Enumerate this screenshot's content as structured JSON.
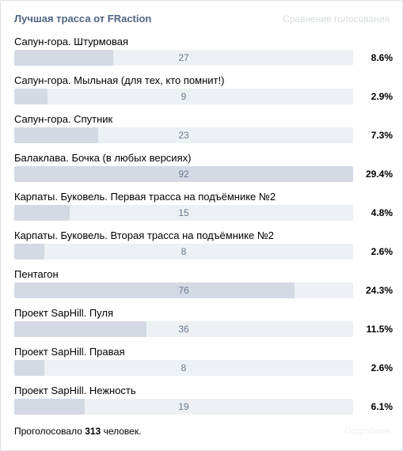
{
  "poll": {
    "title": "Лучшая трасса от FRaction",
    "subtitle": "Сравнение голосования",
    "options": [
      {
        "label": "Сапун-гора. Штурмовая",
        "votes": "27",
        "percent": "8.6%",
        "share": 0.086
      },
      {
        "label": "Сапун-гора. Мыльная (для тех, кто помнит!)",
        "votes": "9",
        "percent": "2.9%",
        "share": 0.029
      },
      {
        "label": "Сапун-гора. Спутник",
        "votes": "23",
        "percent": "7.3%",
        "share": 0.073
      },
      {
        "label": "Балаклава. Бочка (в любых версиях)",
        "votes": "92",
        "percent": "29.4%",
        "share": 0.294
      },
      {
        "label": "Карпаты. Буковель. Первая трасса на подъёмнике №2",
        "votes": "15",
        "percent": "4.8%",
        "share": 0.048
      },
      {
        "label": "Карпаты. Буковель. Вторая трасса на подъёмнике №2",
        "votes": "8",
        "percent": "2.6%",
        "share": 0.026
      },
      {
        "label": "Пентагон",
        "votes": "76",
        "percent": "24.3%",
        "share": 0.243
      },
      {
        "label": "Проект SapHill. Пуля",
        "votes": "36",
        "percent": "11.5%",
        "share": 0.115
      },
      {
        "label": "Проект SapHill. Правая",
        "votes": "8",
        "percent": "2.6%",
        "share": 0.026
      },
      {
        "label": "Проект SapHill. Нежность",
        "votes": "19",
        "percent": "6.1%",
        "share": 0.061
      }
    ],
    "footer": {
      "total_prefix": "Проголосовало",
      "total_count": "313",
      "total_suffix": "человек.",
      "faded_text": "Подробнее"
    }
  },
  "colors": {
    "title": "#4f6482",
    "bar_track": "#edf0f4",
    "bar_fill": "#d3dae4",
    "count_text": "#6b7a8f"
  }
}
